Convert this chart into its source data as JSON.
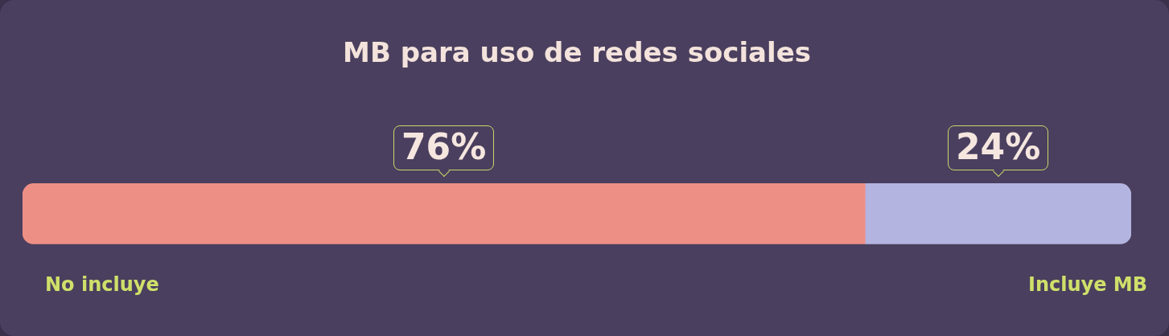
{
  "chart_data": {
    "type": "bar",
    "title": "MB para uso de redes sociales",
    "orientation": "horizontal",
    "stacked": true,
    "categories": [
      null
    ],
    "tick_labels": false,
    "legend": false,
    "series": [
      {
        "name": "No incluye",
        "color": "#ee8f86",
        "values": [
          76
        ],
        "value_labels": [
          "76%"
        ]
      },
      {
        "name": "Incluye MB",
        "color": "#b4b4e0",
        "values": [
          24
        ],
        "value_labels": [
          "24%"
        ]
      }
    ]
  }
}
